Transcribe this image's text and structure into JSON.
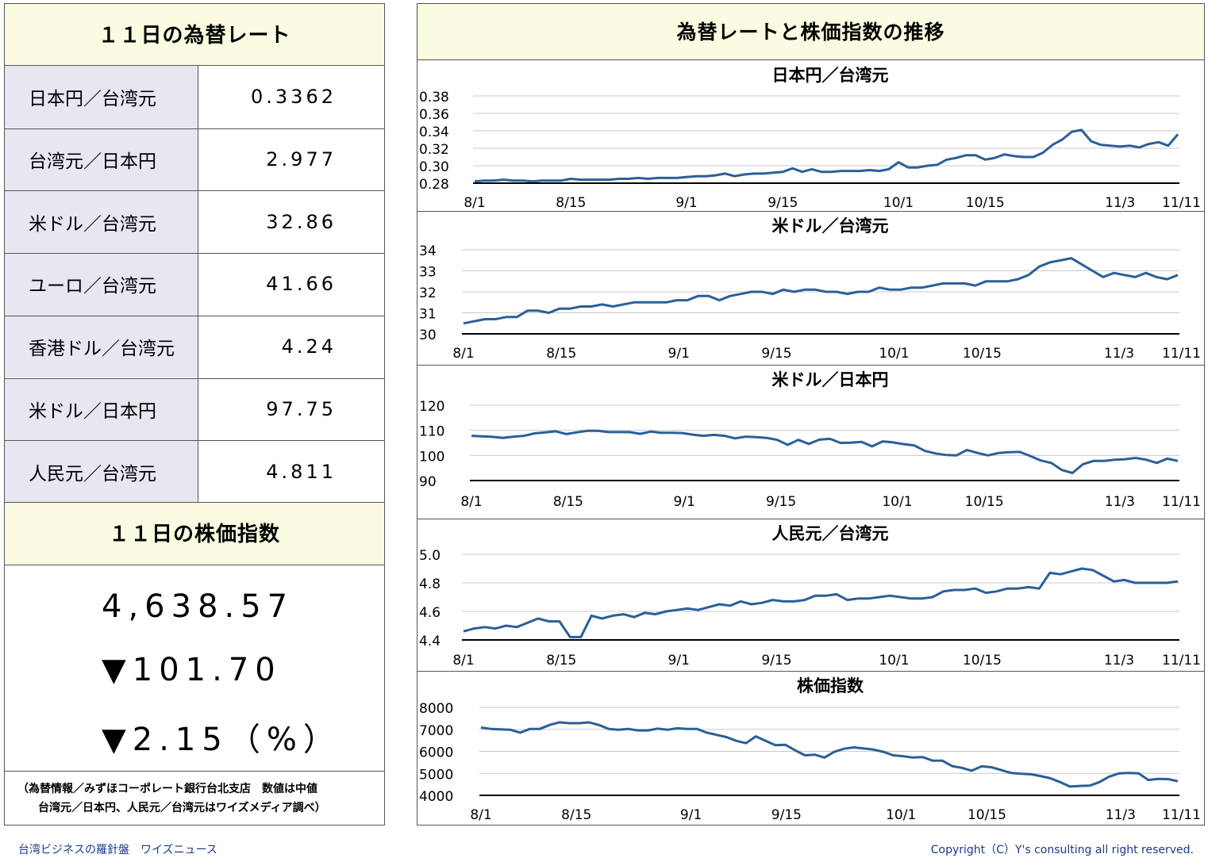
{
  "rates": {
    "title": "１１日の為替レート",
    "rows": [
      {
        "label": "日本円／台湾元",
        "value": "0.3362"
      },
      {
        "label": "台湾元／日本円",
        "value": "2.977"
      },
      {
        "label": "米ドル／台湾元",
        "value": "32.86"
      },
      {
        "label": "ユーロ／台湾元",
        "value": "41.66"
      },
      {
        "label": "香港ドル／台湾元",
        "value": "4.24"
      },
      {
        "label": "米ドル／日本円",
        "value": "97.75"
      },
      {
        "label": "人民元／台湾元",
        "value": "4.811"
      }
    ]
  },
  "stock": {
    "title": "１１日の株価指数",
    "value": "4,638.57",
    "change": "▼101.70",
    "percent": "▼2.15（%）"
  },
  "note": {
    "line1": "（為替情報／みずほコーポレート銀行台北支店　数値は中値",
    "line2": "台湾元／日本円、人民元／台湾元はワイズメディア調べ）"
  },
  "chart_panel_title": "為替レートと株価指数の推移",
  "footer": {
    "left": "台湾ビジネスの羅針盤　ワイズニュース",
    "right": "Copyright（C）Y's consulting all right reserved."
  },
  "colors": {
    "line": "#2a5f9a",
    "header_bg": "#fafbe0",
    "label_bg": "#e6e7f1"
  },
  "chart_data": [
    {
      "type": "line",
      "title": "日本円／台湾元",
      "xticks": [
        "8/1",
        "8/15",
        "9/1",
        "9/15",
        "10/1",
        "10/15",
        "11/3",
        "11/11"
      ],
      "xtick_index": [
        0,
        10,
        22,
        32,
        44,
        53,
        67,
        73
      ],
      "yticks": [
        "0.28",
        "0.30",
        "0.32",
        "0.34",
        "0.36",
        "0.38"
      ],
      "ylim": [
        0.28,
        0.38
      ],
      "values": [
        0.282,
        0.283,
        0.283,
        0.284,
        0.283,
        0.283,
        0.282,
        0.283,
        0.283,
        0.283,
        0.285,
        0.284,
        0.284,
        0.284,
        0.284,
        0.285,
        0.285,
        0.286,
        0.285,
        0.286,
        0.286,
        0.286,
        0.287,
        0.288,
        0.288,
        0.289,
        0.291,
        0.288,
        0.29,
        0.291,
        0.291,
        0.292,
        0.293,
        0.297,
        0.293,
        0.296,
        0.293,
        0.293,
        0.294,
        0.294,
        0.294,
        0.295,
        0.294,
        0.296,
        0.304,
        0.298,
        0.298,
        0.3,
        0.301,
        0.307,
        0.309,
        0.312,
        0.312,
        0.307,
        0.309,
        0.313,
        0.311,
        0.31,
        0.31,
        0.315,
        0.324,
        0.33,
        0.339,
        0.341,
        0.328,
        0.324,
        0.323,
        0.322,
        0.323,
        0.321,
        0.325,
        0.327,
        0.323,
        0.336
      ]
    },
    {
      "type": "line",
      "title": "米ドル／台湾元",
      "xticks": [
        "8/1",
        "8/15",
        "9/1",
        "9/15",
        "10/1",
        "10/15",
        "11/3",
        "11/11"
      ],
      "xtick_index": [
        0,
        10,
        22,
        32,
        44,
        53,
        67,
        73
      ],
      "yticks": [
        "30",
        "31",
        "32",
        "33",
        "34"
      ],
      "ylim": [
        30,
        34
      ],
      "values": [
        30.5,
        30.6,
        30.7,
        30.7,
        30.8,
        30.8,
        31.1,
        31.1,
        31.0,
        31.2,
        31.2,
        31.3,
        31.3,
        31.4,
        31.3,
        31.4,
        31.5,
        31.5,
        31.5,
        31.5,
        31.6,
        31.6,
        31.8,
        31.8,
        31.6,
        31.8,
        31.9,
        32.0,
        32.0,
        31.9,
        32.1,
        32.0,
        32.1,
        32.1,
        32.0,
        32.0,
        31.9,
        32.0,
        32.0,
        32.2,
        32.1,
        32.1,
        32.2,
        32.2,
        32.3,
        32.4,
        32.4,
        32.4,
        32.3,
        32.5,
        32.5,
        32.5,
        32.6,
        32.8,
        33.2,
        33.4,
        33.5,
        33.6,
        33.3,
        33.0,
        32.7,
        32.9,
        32.8,
        32.7,
        32.9,
        32.7,
        32.6,
        32.8
      ]
    },
    {
      "type": "line",
      "title": "米ドル／日本円",
      "xticks": [
        "8/1",
        "8/15",
        "9/1",
        "9/15",
        "10/1",
        "10/15",
        "11/3",
        "11/11"
      ],
      "xtick_index": [
        0,
        10,
        22,
        32,
        44,
        53,
        67,
        73
      ],
      "yticks": [
        "90",
        "100",
        "110",
        "120"
      ],
      "ylim": [
        90,
        120
      ],
      "values": [
        107.8,
        107.6,
        107.4,
        107.0,
        107.5,
        107.8,
        108.8,
        109.2,
        109.6,
        108.5,
        109.2,
        109.8,
        109.8,
        109.3,
        109.3,
        109.3,
        108.6,
        109.5,
        109.0,
        109.0,
        108.9,
        108.3,
        107.8,
        108.2,
        107.8,
        106.8,
        107.5,
        107.3,
        107.0,
        106.2,
        104.2,
        106.2,
        104.6,
        106.3,
        106.6,
        105.0,
        105.1,
        105.4,
        103.6,
        105.6,
        105.2,
        104.5,
        104.0,
        101.8,
        100.8,
        100.2,
        100.0,
        102.2,
        101.0,
        100.0,
        101.0,
        101.3,
        101.4,
        99.8,
        98.0,
        97.0,
        94.2,
        93.0,
        96.5,
        97.8,
        97.8,
        98.3,
        98.5,
        99.0,
        98.3,
        97.0,
        98.7,
        97.8
      ]
    },
    {
      "type": "line",
      "title": "人民元／台湾元",
      "xticks": [
        "8/1",
        "8/15",
        "9/1",
        "9/15",
        "10/1",
        "10/15",
        "11/3",
        "11/11"
      ],
      "xtick_index": [
        0,
        10,
        22,
        32,
        44,
        53,
        67,
        73
      ],
      "yticks": [
        "4.4",
        "4.6",
        "4.8",
        "5.0"
      ],
      "ylim": [
        4.4,
        5.0
      ],
      "values": [
        4.46,
        4.48,
        4.49,
        4.48,
        4.5,
        4.49,
        4.52,
        4.55,
        4.53,
        4.53,
        4.42,
        4.42,
        4.57,
        4.55,
        4.57,
        4.58,
        4.56,
        4.59,
        4.58,
        4.6,
        4.61,
        4.62,
        4.61,
        4.63,
        4.65,
        4.64,
        4.67,
        4.65,
        4.66,
        4.68,
        4.67,
        4.67,
        4.68,
        4.71,
        4.71,
        4.72,
        4.68,
        4.69,
        4.69,
        4.7,
        4.71,
        4.7,
        4.69,
        4.69,
        4.7,
        4.74,
        4.75,
        4.75,
        4.76,
        4.73,
        4.74,
        4.76,
        4.76,
        4.77,
        4.76,
        4.87,
        4.86,
        4.88,
        4.9,
        4.89,
        4.85,
        4.81,
        4.82,
        4.8,
        4.8,
        4.8,
        4.8,
        4.81
      ]
    },
    {
      "type": "line",
      "title": "株価指数",
      "xticks": [
        "8/1",
        "8/15",
        "9/1",
        "9/15",
        "10/1",
        "10/15",
        "11/3",
        "11/11"
      ],
      "xtick_index": [
        0,
        10,
        22,
        32,
        44,
        53,
        67,
        73
      ],
      "yticks": [
        "4000",
        "5000",
        "6000",
        "7000",
        "8000"
      ],
      "ylim": [
        4000,
        8000
      ],
      "values": [
        7080,
        7020,
        7000,
        6980,
        6850,
        7020,
        7020,
        7200,
        7320,
        7280,
        7280,
        7320,
        7200,
        7020,
        6980,
        7020,
        6950,
        6950,
        7030,
        6980,
        7050,
        7020,
        7020,
        6850,
        6750,
        6650,
        6480,
        6370,
        6680,
        6480,
        6280,
        6300,
        6050,
        5820,
        5850,
        5720,
        5980,
        6120,
        6180,
        6130,
        6080,
        5980,
        5820,
        5780,
        5720,
        5740,
        5580,
        5580,
        5330,
        5250,
        5120,
        5320,
        5280,
        5150,
        5020,
        4980,
        4960,
        4880,
        4780,
        4600,
        4400,
        4430,
        4440,
        4600,
        4850,
        5000,
        5020,
        5000,
        4700,
        4750,
        4740,
        4640
      ]
    }
  ]
}
